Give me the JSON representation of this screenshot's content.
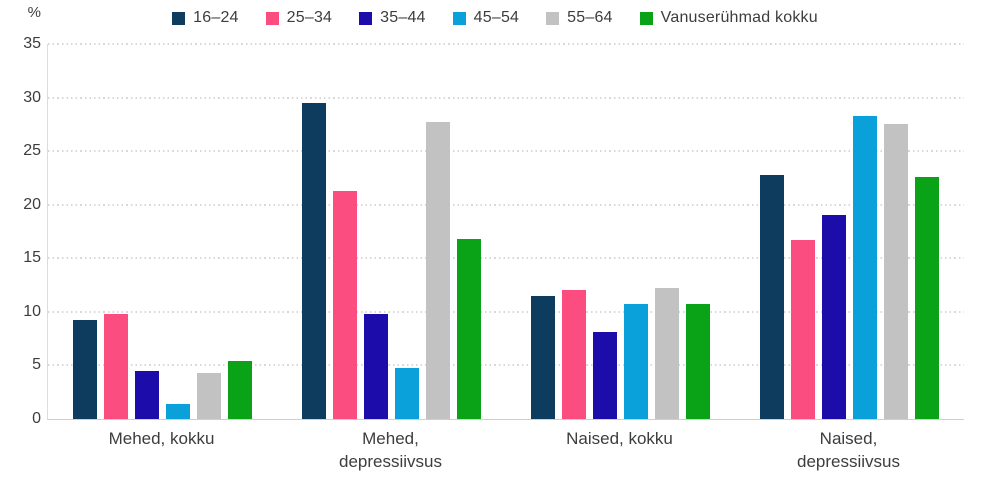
{
  "chart_data": {
    "type": "bar",
    "title": "",
    "ylabel": "%",
    "xlabel": "",
    "ylim": [
      0,
      35
    ],
    "yticks": [
      0,
      5,
      10,
      15,
      20,
      25,
      30,
      35
    ],
    "grid": "horizontal-dotted",
    "legend_position": "top-center",
    "categories": [
      "Mehed, kokku",
      "Mehed, depressiivsus",
      "Naised, kokku",
      "Naised, depressiivsus"
    ],
    "category_label_lines": [
      [
        "Mehed, kokku"
      ],
      [
        "Mehed,",
        "depressiivsus"
      ],
      [
        "Naised, kokku"
      ],
      [
        "Naised,",
        "depressiivsus"
      ]
    ],
    "series": [
      {
        "name": "16–24",
        "color": "#0d3c5e",
        "values": [
          9.2,
          29.5,
          11.5,
          22.8
        ]
      },
      {
        "name": "25–34",
        "color": "#fb4d80",
        "values": [
          9.8,
          21.3,
          12.0,
          16.7
        ]
      },
      {
        "name": "35–44",
        "color": "#1c0daa",
        "values": [
          4.5,
          9.8,
          8.1,
          19.0
        ]
      },
      {
        "name": "45–54",
        "color": "#0aa1da",
        "values": [
          1.4,
          4.8,
          10.7,
          28.3
        ]
      },
      {
        "name": "55–64",
        "color": "#c2c2c2",
        "values": [
          4.3,
          27.7,
          12.2,
          27.5
        ]
      },
      {
        "name": "Vanuserühmad kokku",
        "color": "#0aa317",
        "values": [
          5.4,
          16.8,
          10.7,
          22.6
        ]
      }
    ]
  }
}
